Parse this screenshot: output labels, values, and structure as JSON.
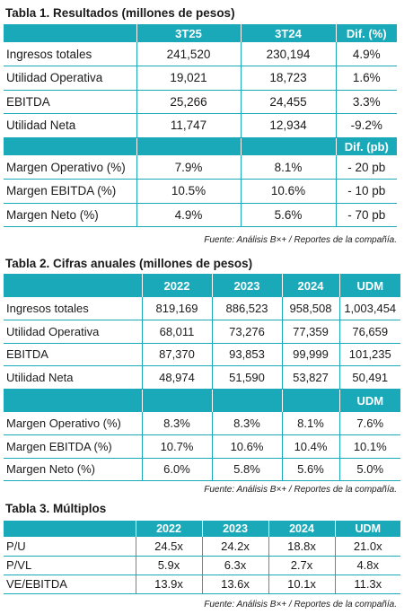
{
  "tabla1": {
    "title": "Tabla 1. Resultados (millones de pesos)",
    "headers": [
      "",
      "3T25",
      "3T24",
      "Dif. (%)"
    ],
    "rows": [
      [
        "Ingresos totales",
        "241,520",
        "230,194",
        "4.9%"
      ],
      [
        "Utilidad Operativa",
        "19,021",
        "18,723",
        "1.6%"
      ],
      [
        "EBITDA",
        "25,266",
        "24,455",
        "3.3%"
      ],
      [
        "Utilidad Neta",
        "11,747",
        "12,934",
        "-9.2%"
      ]
    ],
    "subheader": [
      "",
      "",
      "",
      "Dif. (pb)"
    ],
    "margin_rows": [
      [
        "Margen Operativo (%)",
        "7.9%",
        "8.1%",
        "- 20 pb"
      ],
      [
        "Margen EBITDA (%)",
        "10.5%",
        "10.6%",
        "- 10 pb"
      ],
      [
        "Margen Neto (%)",
        "4.9%",
        "5.6%",
        "- 70 pb"
      ]
    ],
    "source": "Fuente: Análisis B×+ / Reportes de la compañía."
  },
  "tabla2": {
    "title": "Tabla 2. Cifras anuales (millones de pesos)",
    "headers": [
      "",
      "2022",
      "2023",
      "2024",
      "UDM"
    ],
    "rows": [
      [
        "Ingresos totales",
        "819,169",
        "886,523",
        "958,508",
        "1,003,454"
      ],
      [
        "Utilidad Operativa",
        "68,011",
        "73,276",
        "77,359",
        "76,659"
      ],
      [
        "EBITDA",
        "87,370",
        "93,853",
        "99,999",
        "101,235"
      ],
      [
        "Utilidad Neta",
        "48,974",
        "51,590",
        "53,827",
        "50,491"
      ]
    ],
    "subheader": [
      "",
      "",
      "",
      "",
      "UDM"
    ],
    "margin_rows": [
      [
        "Margen Operativo (%)",
        "8.3%",
        "8.3%",
        "8.1%",
        "7.6%"
      ],
      [
        "Margen EBITDA (%)",
        "10.7%",
        "10.6%",
        "10.4%",
        "10.1%"
      ],
      [
        "Margen Neto (%)",
        "6.0%",
        "5.8%",
        "5.6%",
        "5.0%"
      ]
    ],
    "source": "Fuente: Análisis B×+ / Reportes de la compañía."
  },
  "tabla3": {
    "title": "Tabla 3. Múltiplos",
    "headers": [
      "",
      "2022",
      "2023",
      "2024",
      "UDM"
    ],
    "rows": [
      [
        "P/U",
        "24.5x",
        "24.2x",
        "18.8x",
        "21.0x"
      ],
      [
        "P/VL",
        "5.9x",
        "6.3x",
        "2.7x",
        "4.8x"
      ],
      [
        "VE/EBITDA",
        "13.9x",
        "13.6x",
        "10.1x",
        "11.3x"
      ]
    ],
    "source": "Fuente: Análisis B×+ / Reportes de la compañía."
  },
  "colors": {
    "header_bg": "#1aa9b8",
    "header_text": "#ffffff",
    "rule": "#1aa9b8"
  }
}
